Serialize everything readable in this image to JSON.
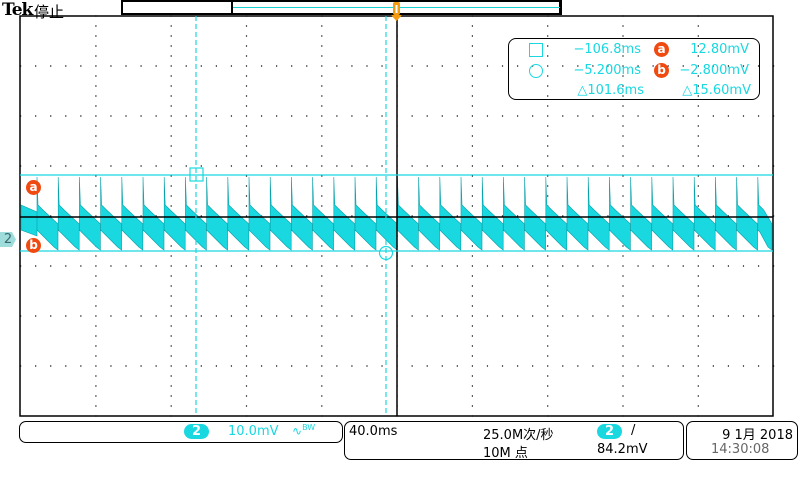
{
  "header": {
    "brand": "Tek",
    "state": "停止"
  },
  "colors": {
    "channel2": "#19d8e0",
    "cursor_badge": "#f04a10",
    "trigger": "#f39a10",
    "grid": "#000000"
  },
  "channel": {
    "number": "2",
    "scale": "10.0mV",
    "bandwidth_icon": "bandwidth-limit-icon",
    "bw_label": "BW"
  },
  "cursors": {
    "a_label": "a",
    "b_label": "b",
    "time1": "−106.8ms",
    "time2": "−5.200ms",
    "delta_time": "△101.6ms",
    "volt_a": "12.80mV",
    "volt_b": "−2.800mV",
    "delta_volt": "△15.60mV"
  },
  "horizontal": {
    "scale": "40.0ms",
    "sample_rate": "25.0M次/秒",
    "record_length": "10M 点"
  },
  "trigger": {
    "channel": "2",
    "slope_icon": "rising-edge-icon",
    "level": "84.2mV"
  },
  "datetime": {
    "date": "9 1月 2018",
    "time": "14:30:08"
  }
}
